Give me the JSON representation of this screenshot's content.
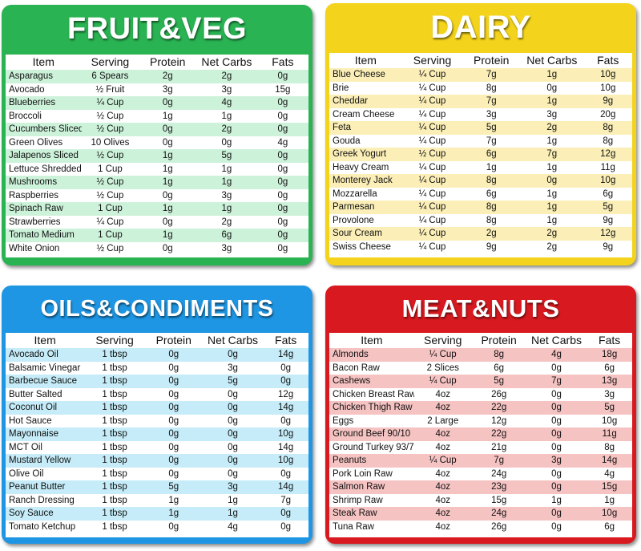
{
  "colors": {
    "fruit": "#29b352",
    "fruit_stripe": "#cdf2da",
    "dairy": "#f3d31b",
    "dairy_stripe": "#fbefb7",
    "oils": "#1e96e3",
    "oils_stripe": "#c5ecf8",
    "meat": "#d8191f",
    "meat_stripe": "#f6c3c3"
  },
  "fruit": {
    "title": "FRUIT&VEG",
    "headers": [
      "Item",
      "Serving",
      "Protein",
      "Net Carbs",
      "Fats"
    ],
    "rows": [
      {
        "item": "Asparagus",
        "serving": "6 Spears",
        "protein": "2g",
        "carbs": "2g",
        "fats": "0g"
      },
      {
        "item": "Avocado",
        "serving": "½ Fruit",
        "protein": "3g",
        "carbs": "3g",
        "fats": "15g"
      },
      {
        "item": "Blueberries",
        "serving": "¼ Cup",
        "protein": "0g",
        "carbs": "4g",
        "fats": "0g"
      },
      {
        "item": "Broccoli",
        "serving": "½ Cup",
        "protein": "1g",
        "carbs": "1g",
        "fats": "0g"
      },
      {
        "item": "Cucumbers Sliced",
        "serving": "½ Cup",
        "protein": "0g",
        "carbs": "2g",
        "fats": "0g"
      },
      {
        "item": "Green Olives",
        "serving": "10 Olives",
        "protein": "0g",
        "carbs": "0g",
        "fats": "4g"
      },
      {
        "item": "Jalapenos Sliced",
        "serving": "½ Cup",
        "protein": "1g",
        "carbs": "5g",
        "fats": "0g"
      },
      {
        "item": "Lettuce Shredded",
        "serving": "1 Cup",
        "protein": "1g",
        "carbs": "1g",
        "fats": "0g"
      },
      {
        "item": "Mushrooms",
        "serving": "½ Cup",
        "protein": "1g",
        "carbs": "1g",
        "fats": "0g"
      },
      {
        "item": "Raspberries",
        "serving": "½ Cup",
        "protein": "0g",
        "carbs": "3g",
        "fats": "0g"
      },
      {
        "item": "Spinach Raw",
        "serving": "1 Cup",
        "protein": "1g",
        "carbs": "1g",
        "fats": "0g"
      },
      {
        "item": "Strawberries",
        "serving": "¼ Cup",
        "protein": "0g",
        "carbs": "2g",
        "fats": "0g"
      },
      {
        "item": "Tomato Medium",
        "serving": "1 Cup",
        "protein": "1g",
        "carbs": "6g",
        "fats": "0g"
      },
      {
        "item": "White Onion",
        "serving": "½ Cup",
        "protein": "0g",
        "carbs": "3g",
        "fats": "0g"
      }
    ]
  },
  "dairy": {
    "title": "DAIRY",
    "headers": [
      "Item",
      "Serving",
      "Protein",
      "Net Carbs",
      "Fats"
    ],
    "rows": [
      {
        "item": "Blue Cheese",
        "serving": "¼ Cup",
        "protein": "7g",
        "carbs": "1g",
        "fats": "10g"
      },
      {
        "item": "Brie",
        "serving": "¼ Cup",
        "protein": "8g",
        "carbs": "0g",
        "fats": "10g"
      },
      {
        "item": "Cheddar",
        "serving": "¼ Cup",
        "protein": "7g",
        "carbs": "1g",
        "fats": "9g"
      },
      {
        "item": "Cream Cheese",
        "serving": "¼ Cup",
        "protein": "3g",
        "carbs": "3g",
        "fats": "20g"
      },
      {
        "item": "Feta",
        "serving": "¼ Cup",
        "protein": "5g",
        "carbs": "2g",
        "fats": "8g"
      },
      {
        "item": "Gouda",
        "serving": "¼ Cup",
        "protein": "7g",
        "carbs": "1g",
        "fats": "8g"
      },
      {
        "item": "Greek Yogurt",
        "serving": "½ Cup",
        "protein": "6g",
        "carbs": "7g",
        "fats": "12g"
      },
      {
        "item": "Heavy Cream",
        "serving": "¼ Cup",
        "protein": "1g",
        "carbs": "1g",
        "fats": "11g"
      },
      {
        "item": "Monterey Jack",
        "serving": "¼ Cup",
        "protein": "8g",
        "carbs": "0g",
        "fats": "10g"
      },
      {
        "item": "Mozzarella",
        "serving": "¼ Cup",
        "protein": "6g",
        "carbs": "1g",
        "fats": "6g"
      },
      {
        "item": "Parmesan",
        "serving": "¼ Cup",
        "protein": "8g",
        "carbs": "1g",
        "fats": "5g"
      },
      {
        "item": "Provolone",
        "serving": "¼ Cup",
        "protein": "8g",
        "carbs": "1g",
        "fats": "9g"
      },
      {
        "item": "Sour Cream",
        "serving": "¼ Cup",
        "protein": "2g",
        "carbs": "2g",
        "fats": "12g"
      },
      {
        "item": "Swiss Cheese",
        "serving": "¼ Cup",
        "protein": "9g",
        "carbs": "2g",
        "fats": "9g"
      }
    ]
  },
  "oils": {
    "title": "OILS&CONDIMENTS",
    "headers": [
      "Item",
      "Serving",
      "Protein",
      "Net Carbs",
      "Fats"
    ],
    "rows": [
      {
        "item": "Avocado Oil",
        "serving": "1 tbsp",
        "protein": "0g",
        "carbs": "0g",
        "fats": "14g"
      },
      {
        "item": "Balsamic Vinegar",
        "serving": "1 tbsp",
        "protein": "0g",
        "carbs": "3g",
        "fats": "0g"
      },
      {
        "item": "Barbecue Sauce",
        "serving": "1 tbsp",
        "protein": "0g",
        "carbs": "5g",
        "fats": "0g"
      },
      {
        "item": "Butter Salted",
        "serving": "1 tbsp",
        "protein": "0g",
        "carbs": "0g",
        "fats": "12g"
      },
      {
        "item": "Coconut Oil",
        "serving": "1 tbsp",
        "protein": "0g",
        "carbs": "0g",
        "fats": "14g"
      },
      {
        "item": "Hot Sauce",
        "serving": "1 tbsp",
        "protein": "0g",
        "carbs": "0g",
        "fats": "0g"
      },
      {
        "item": "Mayonnaise",
        "serving": "1 tbsp",
        "protein": "0g",
        "carbs": "0g",
        "fats": "10g"
      },
      {
        "item": "MCT Oil",
        "serving": "1 tbsp",
        "protein": "0g",
        "carbs": "0g",
        "fats": "14g"
      },
      {
        "item": "Mustard Yellow",
        "serving": "1 tbsp",
        "protein": "0g",
        "carbs": "0g",
        "fats": "10g"
      },
      {
        "item": "Olive Oil",
        "serving": "1 tbsp",
        "protein": "0g",
        "carbs": "0g",
        "fats": "0g"
      },
      {
        "item": "Peanut Butter",
        "serving": "1 tbsp",
        "protein": "5g",
        "carbs": "3g",
        "fats": "14g"
      },
      {
        "item": "Ranch Dressing",
        "serving": "1 tbsp",
        "protein": "1g",
        "carbs": "1g",
        "fats": "7g"
      },
      {
        "item": "Soy Sauce",
        "serving": "1 tbsp",
        "protein": "1g",
        "carbs": "1g",
        "fats": "0g"
      },
      {
        "item": "Tomato Ketchup",
        "serving": "1 tbsp",
        "protein": "0g",
        "carbs": "4g",
        "fats": "0g"
      }
    ]
  },
  "meat": {
    "title": "MEAT&NUTS",
    "headers": [
      "Item",
      "Serving",
      "Protein",
      "Net Carbs",
      "Fats"
    ],
    "rows": [
      {
        "item": "Almonds",
        "serving": "¼ Cup",
        "protein": "8g",
        "carbs": "4g",
        "fats": "18g"
      },
      {
        "item": "Bacon Raw",
        "serving": "2 Slices",
        "protein": "6g",
        "carbs": "0g",
        "fats": "6g"
      },
      {
        "item": "Cashews",
        "serving": "¼ Cup",
        "protein": "5g",
        "carbs": "7g",
        "fats": "13g"
      },
      {
        "item": "Chicken Breast Raw",
        "serving": "4oz",
        "protein": "26g",
        "carbs": "0g",
        "fats": "3g"
      },
      {
        "item": "Chicken Thigh Raw",
        "serving": "4oz",
        "protein": "22g",
        "carbs": "0g",
        "fats": "5g"
      },
      {
        "item": "Eggs",
        "serving": "2 Large",
        "protein": "12g",
        "carbs": "0g",
        "fats": "10g"
      },
      {
        "item": "Ground Beef 90/10",
        "serving": "4oz",
        "protein": "22g",
        "carbs": "0g",
        "fats": "11g"
      },
      {
        "item": "Ground Turkey 93/7",
        "serving": "4oz",
        "protein": "21g",
        "carbs": "0g",
        "fats": "8g"
      },
      {
        "item": "Peanuts",
        "serving": "¼ Cup",
        "protein": "7g",
        "carbs": "3g",
        "fats": "14g"
      },
      {
        "item": "Pork Loin Raw",
        "serving": "4oz",
        "protein": "24g",
        "carbs": "0g",
        "fats": "4g"
      },
      {
        "item": "Salmon Raw",
        "serving": "4oz",
        "protein": "23g",
        "carbs": "0g",
        "fats": "15g"
      },
      {
        "item": "Shrimp Raw",
        "serving": "4oz",
        "protein": "15g",
        "carbs": "1g",
        "fats": "1g"
      },
      {
        "item": "Steak Raw",
        "serving": "4oz",
        "protein": "24g",
        "carbs": "0g",
        "fats": "10g"
      },
      {
        "item": "Tuna Raw",
        "serving": "4oz",
        "protein": "26g",
        "carbs": "0g",
        "fats": "6g"
      }
    ]
  }
}
